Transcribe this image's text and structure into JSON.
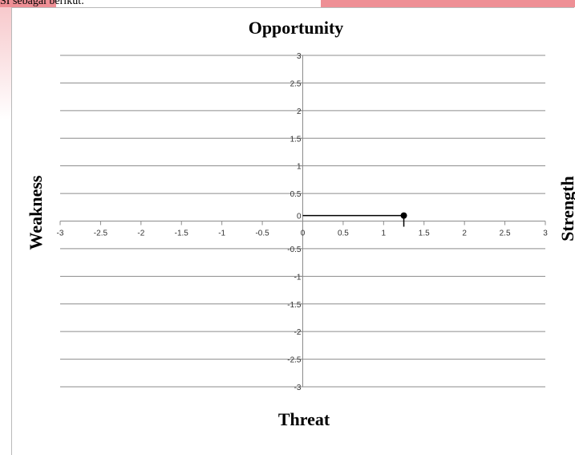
{
  "page": {
    "caption": "SI sebagai berikut:"
  },
  "chart_data": {
    "type": "scatter",
    "title": "",
    "quadrant_labels": {
      "top": "Opportunity",
      "bottom": "Threat",
      "left": "Weakness",
      "right": "Strength"
    },
    "xlim": [
      -3,
      3
    ],
    "ylim": [
      -3,
      3
    ],
    "x_ticks": [
      -3,
      -2.5,
      -2,
      -1.5,
      -1,
      -0.5,
      0,
      0.5,
      1,
      1.5,
      2,
      2.5,
      3
    ],
    "y_ticks": [
      3,
      2.5,
      2,
      1.5,
      1,
      0.5,
      0,
      -0.5,
      -1,
      -1.5,
      -2,
      -2.5,
      -3
    ],
    "x_tick_labels": [
      "-3",
      "-2.5",
      "-2",
      "-1.5",
      "-1",
      "-0.5",
      "0",
      "0.5",
      "1",
      "1.5",
      "2",
      "2.5",
      "3"
    ],
    "y_tick_labels": [
      "3",
      "2.5",
      "2",
      "1.5",
      "1",
      "0.5",
      "0",
      "-0.5",
      "-1",
      "-1.5",
      "-2",
      "-2.5",
      "-3"
    ],
    "grid": "horizontal",
    "points": [
      {
        "x": 1.25,
        "y": 0.1
      }
    ],
    "marker_color": "#000000"
  }
}
